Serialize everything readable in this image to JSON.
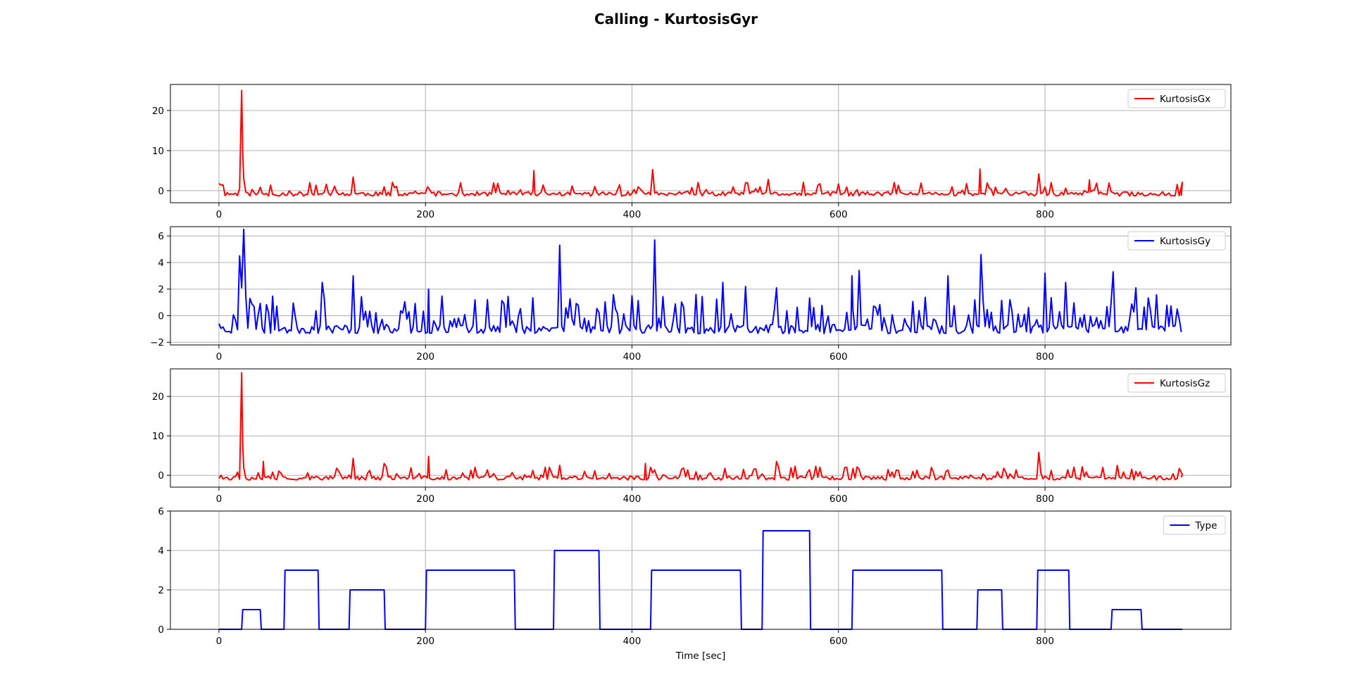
{
  "figure": {
    "title": "Calling - KurtosisGyr"
  },
  "chart_data": [
    {
      "type": "line",
      "series": [
        {
          "name": "KurtosisGx",
          "color": "#ff0000",
          "generator": {
            "baseline": -0.8,
            "noise": 0.55,
            "spike_rate": 0.16,
            "spike_max": 2.3,
            "seed": 11
          },
          "peaks": [
            [
              0,
              1.8
            ],
            [
              22,
              25
            ],
            [
              23,
              10
            ],
            [
              24,
              3
            ],
            [
              88,
              2.0
            ],
            [
              130,
              3.4
            ],
            [
              305,
              5.0
            ],
            [
              420,
              5.3
            ],
            [
              532,
              2.8
            ],
            [
              737,
              5.4
            ],
            [
              794,
              4.2
            ],
            [
              843,
              2.7
            ],
            [
              933,
              2.1
            ]
          ]
        }
      ],
      "x_range": [
        0,
        933
      ],
      "xlim": [
        -47,
        980
      ],
      "ylim": [
        -3,
        26.5
      ],
      "xticks": [
        0,
        200,
        400,
        600,
        800
      ],
      "yticks": [
        0,
        10,
        20
      ],
      "grid": true,
      "legend": "upper-right",
      "xlabel": ""
    },
    {
      "type": "line",
      "series": [
        {
          "name": "KurtosisGy",
          "color": "#0000ff",
          "generator": {
            "baseline": -1.0,
            "noise": 0.35,
            "spike_rate": 0.28,
            "spike_max": 2.0,
            "seed": 23
          },
          "peaks": [
            [
              0,
              -0.6
            ],
            [
              20,
              4.5
            ],
            [
              22,
              2.1
            ],
            [
              24,
              6.5
            ],
            [
              26,
              1.5
            ],
            [
              100,
              2.5
            ],
            [
              130,
              3.0
            ],
            [
              203,
              2.0
            ],
            [
              330,
              5.3
            ],
            [
              422,
              5.7
            ],
            [
              488,
              2.5
            ],
            [
              510,
              2.2
            ],
            [
              540,
              2.1
            ],
            [
              613,
              3.0
            ],
            [
              620,
              3.4
            ],
            [
              706,
              3.0
            ],
            [
              738,
              4.6
            ],
            [
              800,
              3.2
            ],
            [
              820,
              2.5
            ],
            [
              866,
              3.3
            ],
            [
              888,
              2.1
            ],
            [
              928,
              0.5
            ]
          ]
        }
      ],
      "x_range": [
        0,
        933
      ],
      "xlim": [
        -47,
        980
      ],
      "ylim": [
        -2.2,
        6.7
      ],
      "xticks": [
        0,
        200,
        400,
        600,
        800
      ],
      "yticks": [
        -2,
        0,
        2,
        4,
        6
      ],
      "grid": true,
      "legend": "upper-right",
      "xlabel": ""
    },
    {
      "type": "line",
      "series": [
        {
          "name": "KurtosisGz",
          "color": "#ff0000",
          "generator": {
            "baseline": -0.7,
            "noise": 0.5,
            "spike_rate": 0.22,
            "spike_max": 2.4,
            "seed": 37
          },
          "peaks": [
            [
              0,
              -0.8
            ],
            [
              22,
              26
            ],
            [
              23,
              8
            ],
            [
              24,
              2
            ],
            [
              43,
              3.5
            ],
            [
              130,
              4.3
            ],
            [
              160,
              3.0
            ],
            [
              203,
              4.8
            ],
            [
              330,
              2.5
            ],
            [
              413,
              3.0
            ],
            [
              540,
              3.5
            ],
            [
              794,
              5.8
            ],
            [
              870,
              2.5
            ],
            [
              933,
              0.2
            ]
          ]
        }
      ],
      "x_range": [
        0,
        933
      ],
      "xlim": [
        -47,
        980
      ],
      "ylim": [
        -3,
        27
      ],
      "xticks": [
        0,
        200,
        400,
        600,
        800
      ],
      "yticks": [
        0,
        10,
        20
      ],
      "grid": true,
      "legend": "upper-right",
      "xlabel": ""
    },
    {
      "type": "line",
      "series": [
        {
          "name": "Type",
          "color": "#0000ff",
          "points": [
            [
              0,
              0
            ],
            [
              22,
              0
            ],
            [
              23,
              1
            ],
            [
              40,
              1
            ],
            [
              41,
              0
            ],
            [
              63,
              0
            ],
            [
              64,
              3
            ],
            [
              96,
              3
            ],
            [
              97,
              0
            ],
            [
              126,
              0
            ],
            [
              127,
              2
            ],
            [
              160,
              2
            ],
            [
              161,
              0
            ],
            [
              200,
              0
            ],
            [
              201,
              3
            ],
            [
              286,
              3
            ],
            [
              287,
              0
            ],
            [
              324,
              0
            ],
            [
              325,
              4
            ],
            [
              368,
              4
            ],
            [
              369,
              0
            ],
            [
              418,
              0
            ],
            [
              419,
              3
            ],
            [
              505,
              3
            ],
            [
              506,
              0
            ],
            [
              526,
              0
            ],
            [
              527,
              5
            ],
            [
              572,
              5
            ],
            [
              573,
              0
            ],
            [
              613,
              0
            ],
            [
              614,
              3
            ],
            [
              700,
              3
            ],
            [
              701,
              0
            ],
            [
              734,
              0
            ],
            [
              735,
              2
            ],
            [
              758,
              2
            ],
            [
              759,
              0
            ],
            [
              792,
              0
            ],
            [
              793,
              3
            ],
            [
              823,
              3
            ],
            [
              824,
              0
            ],
            [
              864,
              0
            ],
            [
              865,
              1
            ],
            [
              893,
              1
            ],
            [
              894,
              0
            ],
            [
              933,
              0
            ]
          ]
        }
      ],
      "xlim": [
        -47,
        980
      ],
      "ylim": [
        0,
        6
      ],
      "xticks": [
        0,
        200,
        400,
        600,
        800
      ],
      "yticks": [
        0,
        2,
        4,
        6
      ],
      "grid": true,
      "legend": "upper-right",
      "xlabel": "Time [sec]"
    }
  ]
}
